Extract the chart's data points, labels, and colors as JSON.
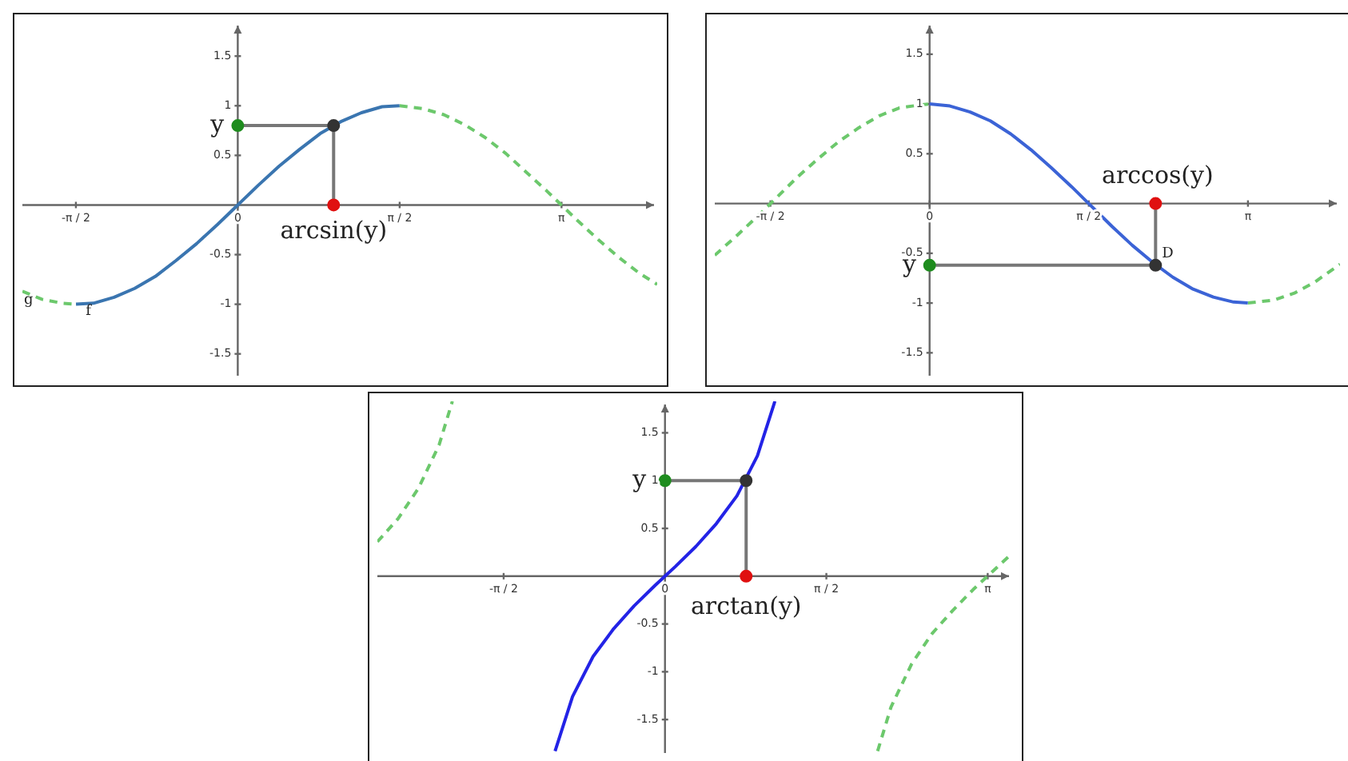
{
  "chart_data": [
    {
      "type": "line",
      "xlim": [
        -2.09,
        4.07
      ],
      "ylim": [
        -1.72,
        1.84
      ],
      "xticks": [
        {
          "value": -1.5708,
          "label": "-π / 2"
        },
        {
          "value": 0,
          "label": "0"
        },
        {
          "value": 1.5708,
          "label": "π / 2"
        },
        {
          "value": 3.1416,
          "label": "π"
        }
      ],
      "yticks": [
        -1.5,
        -1,
        -0.5,
        0.5,
        1,
        1.5
      ],
      "marker": "none",
      "series": [
        {
          "color": "#6cc86c",
          "line_style": "dashed",
          "x": [
            -2.09,
            -1.9,
            -1.7,
            -1.57,
            0,
            1.57,
            1.8,
            2.0,
            2.2,
            2.4,
            2.6,
            2.8,
            3.0,
            3.14,
            3.3,
            3.5,
            3.7,
            3.9,
            4.07
          ],
          "values": [
            -0.87,
            -0.95,
            -0.99,
            -1,
            null,
            1,
            0.97,
            0.91,
            0.81,
            0.68,
            0.52,
            0.33,
            0.14,
            0,
            -0.16,
            -0.35,
            -0.53,
            -0.69,
            -0.8
          ]
        },
        {
          "color": "#3a75b0",
          "x": [
            -1.57,
            -1.4,
            -1.2,
            -1,
            -0.8,
            -0.6,
            -0.4,
            -0.2,
            0,
            0.2,
            0.4,
            0.6,
            0.8,
            1,
            1.2,
            1.4,
            1.57
          ],
          "values": [
            -1,
            -0.99,
            -0.93,
            -0.84,
            -0.72,
            -0.56,
            -0.39,
            -0.2,
            0,
            0.2,
            0.39,
            0.56,
            0.72,
            0.84,
            0.93,
            0.99,
            1
          ]
        },
        {
          "color": "#777777",
          "x": [
            0,
            0.93
          ],
          "values": [
            0.8,
            0.8
          ]
        },
        {
          "color": "#777777",
          "x": [
            0.93,
            0.93
          ],
          "values": [
            0.8,
            0
          ]
        },
        {
          "type": "scatter",
          "marker": "circle",
          "color": "#1e8c1e",
          "x": [
            0
          ],
          "values": [
            0.8
          ]
        },
        {
          "type": "scatter",
          "marker": "circle",
          "color": "#333333",
          "x": [
            0.93
          ],
          "values": [
            0.8
          ]
        },
        {
          "type": "scatter",
          "marker": "circle",
          "color": "#e01010",
          "x": [
            0.93
          ],
          "values": [
            0
          ]
        }
      ],
      "annotations": [
        "y",
        "arcsin(y)",
        "g",
        "f"
      ]
    },
    {
      "type": "line",
      "xlim": [
        -2.12,
        4.05
      ],
      "ylim": [
        -1.73,
        1.82
      ],
      "xticks": [
        {
          "value": -1.5708,
          "label": "-π / 2"
        },
        {
          "value": 0,
          "label": "0"
        },
        {
          "value": 1.5708,
          "label": "π / 2"
        },
        {
          "value": 3.1416,
          "label": "π"
        }
      ],
      "yticks": [
        -1.5,
        -1,
        -0.5,
        0.5,
        1,
        1.5
      ],
      "marker": "none",
      "series": [
        {
          "color": "#6cc86c",
          "line_style": "dashed",
          "x": [
            -2.12,
            -1.9,
            -1.7,
            -1.5,
            -1.3,
            -1.1,
            -0.9,
            -0.7,
            -0.5,
            -0.3,
            -0.1,
            0,
            1.57,
            3.14,
            3.4,
            3.6,
            3.8,
            4.05
          ],
          "values": [
            -0.52,
            -0.32,
            -0.13,
            0.07,
            0.27,
            0.45,
            0.62,
            0.76,
            0.88,
            0.96,
            0.99,
            1,
            null,
            -1,
            -0.97,
            -0.9,
            -0.79,
            -0.61
          ]
        },
        {
          "color": "#3b63d6",
          "x": [
            0,
            0.2,
            0.4,
            0.6,
            0.8,
            1.0,
            1.2,
            1.4,
            1.57,
            1.8,
            2.0,
            2.2,
            2.4,
            2.6,
            2.8,
            3.0,
            3.14
          ],
          "values": [
            1,
            0.98,
            0.92,
            0.83,
            0.7,
            0.54,
            0.36,
            0.17,
            0,
            -0.23,
            -0.42,
            -0.59,
            -0.74,
            -0.86,
            -0.94,
            -0.99,
            -1
          ]
        },
        {
          "color": "#777777",
          "x": [
            0,
            2.23
          ],
          "values": [
            -0.62,
            -0.62
          ]
        },
        {
          "color": "#777777",
          "x": [
            2.23,
            2.23
          ],
          "values": [
            -0.62,
            0
          ]
        },
        {
          "type": "scatter",
          "marker": "circle",
          "color": "#1e8c1e",
          "x": [
            0
          ],
          "values": [
            -0.62
          ]
        },
        {
          "type": "scatter",
          "marker": "circle",
          "color": "#333333",
          "x": [
            2.23
          ],
          "values": [
            -0.62
          ]
        },
        {
          "type": "scatter",
          "marker": "circle",
          "color": "#e01010",
          "x": [
            2.23
          ],
          "values": [
            0
          ]
        }
      ],
      "annotations": [
        "y",
        "arccos(y)",
        "D"
      ]
    },
    {
      "type": "line",
      "xlim": [
        -2.8,
        3.38
      ],
      "ylim": [
        -1.85,
        1.83
      ],
      "xticks": [
        {
          "value": -1.5708,
          "label": "-π / 2"
        },
        {
          "value": 0,
          "label": "0"
        },
        {
          "value": 1.5708,
          "label": "π / 2"
        },
        {
          "value": 3.1416,
          "label": "π"
        }
      ],
      "yticks": [
        -1.5,
        -1,
        -0.5,
        0.5,
        1,
        1.5
      ],
      "marker": "none",
      "series": [
        {
          "color": "#6cc86c",
          "line_style": "dashed",
          "x": [
            -2.8,
            -2.6,
            -2.4,
            -2.2,
            -2.07,
            0,
            2.07,
            2.2,
            2.4,
            2.6,
            2.8,
            3.0,
            3.14,
            3.38
          ],
          "values": [
            0.36,
            0.6,
            0.92,
            1.37,
            1.83,
            null,
            -1.83,
            -1.37,
            -0.92,
            -0.6,
            -0.36,
            -0.14,
            0,
            0.24
          ]
        },
        {
          "color": "#2323e6",
          "x": [
            -1.07,
            -0.9,
            -0.7,
            -0.5,
            -0.3,
            -0.1,
            0,
            0.1,
            0.3,
            0.5,
            0.7,
            0.9,
            1.07
          ],
          "values": [
            -1.83,
            -1.26,
            -0.84,
            -0.55,
            -0.31,
            -0.1,
            0,
            0.1,
            0.31,
            0.55,
            0.84,
            1.26,
            1.83
          ]
        },
        {
          "color": "#777777",
          "x": [
            0,
            0.79
          ],
          "values": [
            1,
            1
          ]
        },
        {
          "color": "#777777",
          "x": [
            0.79,
            0.79
          ],
          "values": [
            1,
            0
          ]
        },
        {
          "type": "scatter",
          "marker": "circle",
          "color": "#1e8c1e",
          "x": [
            0
          ],
          "values": [
            1
          ]
        },
        {
          "type": "scatter",
          "marker": "circle",
          "color": "#333333",
          "x": [
            0.79
          ],
          "values": [
            1
          ]
        },
        {
          "type": "scatter",
          "marker": "circle",
          "color": "#e01010",
          "x": [
            0.79
          ],
          "values": [
            0
          ]
        }
      ],
      "annotations": [
        "y",
        "arctan(y)"
      ]
    }
  ]
}
